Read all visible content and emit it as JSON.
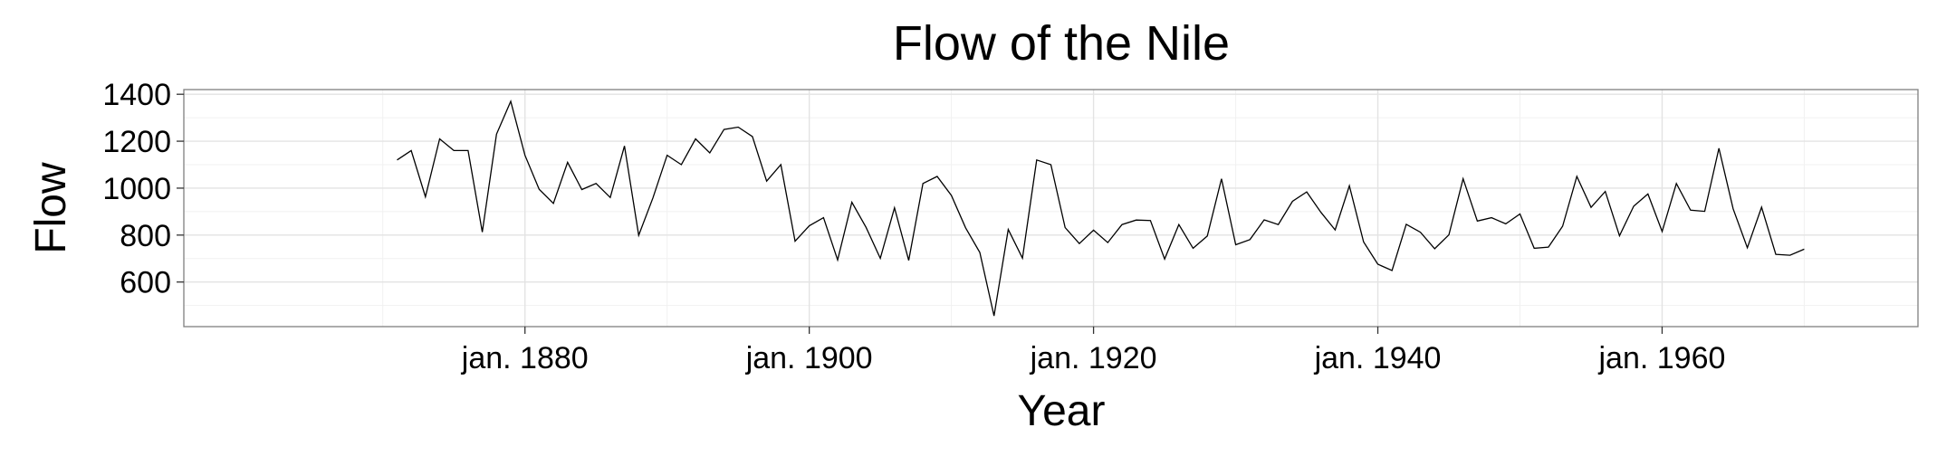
{
  "chart_data": {
    "type": "line",
    "title": "Flow of the Nile",
    "xlabel": "Year",
    "ylabel": "Flow",
    "x_start": 1871,
    "x_end": 1970,
    "xlim": [
      1856,
      1978
    ],
    "ylim": [
      410,
      1420
    ],
    "yticks": [
      600,
      800,
      1000,
      1200,
      1400
    ],
    "xticks": [
      {
        "value": 1880,
        "label": "jan. 1880"
      },
      {
        "value": 1900,
        "label": "jan. 1900"
      },
      {
        "value": 1920,
        "label": "jan. 1920"
      },
      {
        "value": 1940,
        "label": "jan. 1940"
      },
      {
        "value": 1960,
        "label": "jan. 1960"
      }
    ],
    "grid": true,
    "legend": "none",
    "values": [
      1120,
      1160,
      963,
      1210,
      1160,
      1160,
      813,
      1230,
      1370,
      1140,
      995,
      935,
      1110,
      994,
      1020,
      960,
      1180,
      799,
      958,
      1140,
      1100,
      1210,
      1150,
      1250,
      1260,
      1220,
      1030,
      1100,
      774,
      840,
      874,
      694,
      940,
      833,
      701,
      916,
      692,
      1020,
      1050,
      969,
      831,
      726,
      456,
      824,
      702,
      1120,
      1100,
      832,
      764,
      821,
      768,
      845,
      864,
      862,
      698,
      845,
      744,
      796,
      1040,
      759,
      781,
      865,
      845,
      944,
      984,
      897,
      822,
      1010,
      771,
      676,
      649,
      846,
      812,
      742,
      801,
      1040,
      860,
      874,
      848,
      890,
      744,
      749,
      838,
      1050,
      918,
      986,
      797,
      923,
      975,
      815,
      1020,
      906,
      901,
      1170,
      912,
      746,
      919,
      718,
      714,
      740
    ]
  }
}
